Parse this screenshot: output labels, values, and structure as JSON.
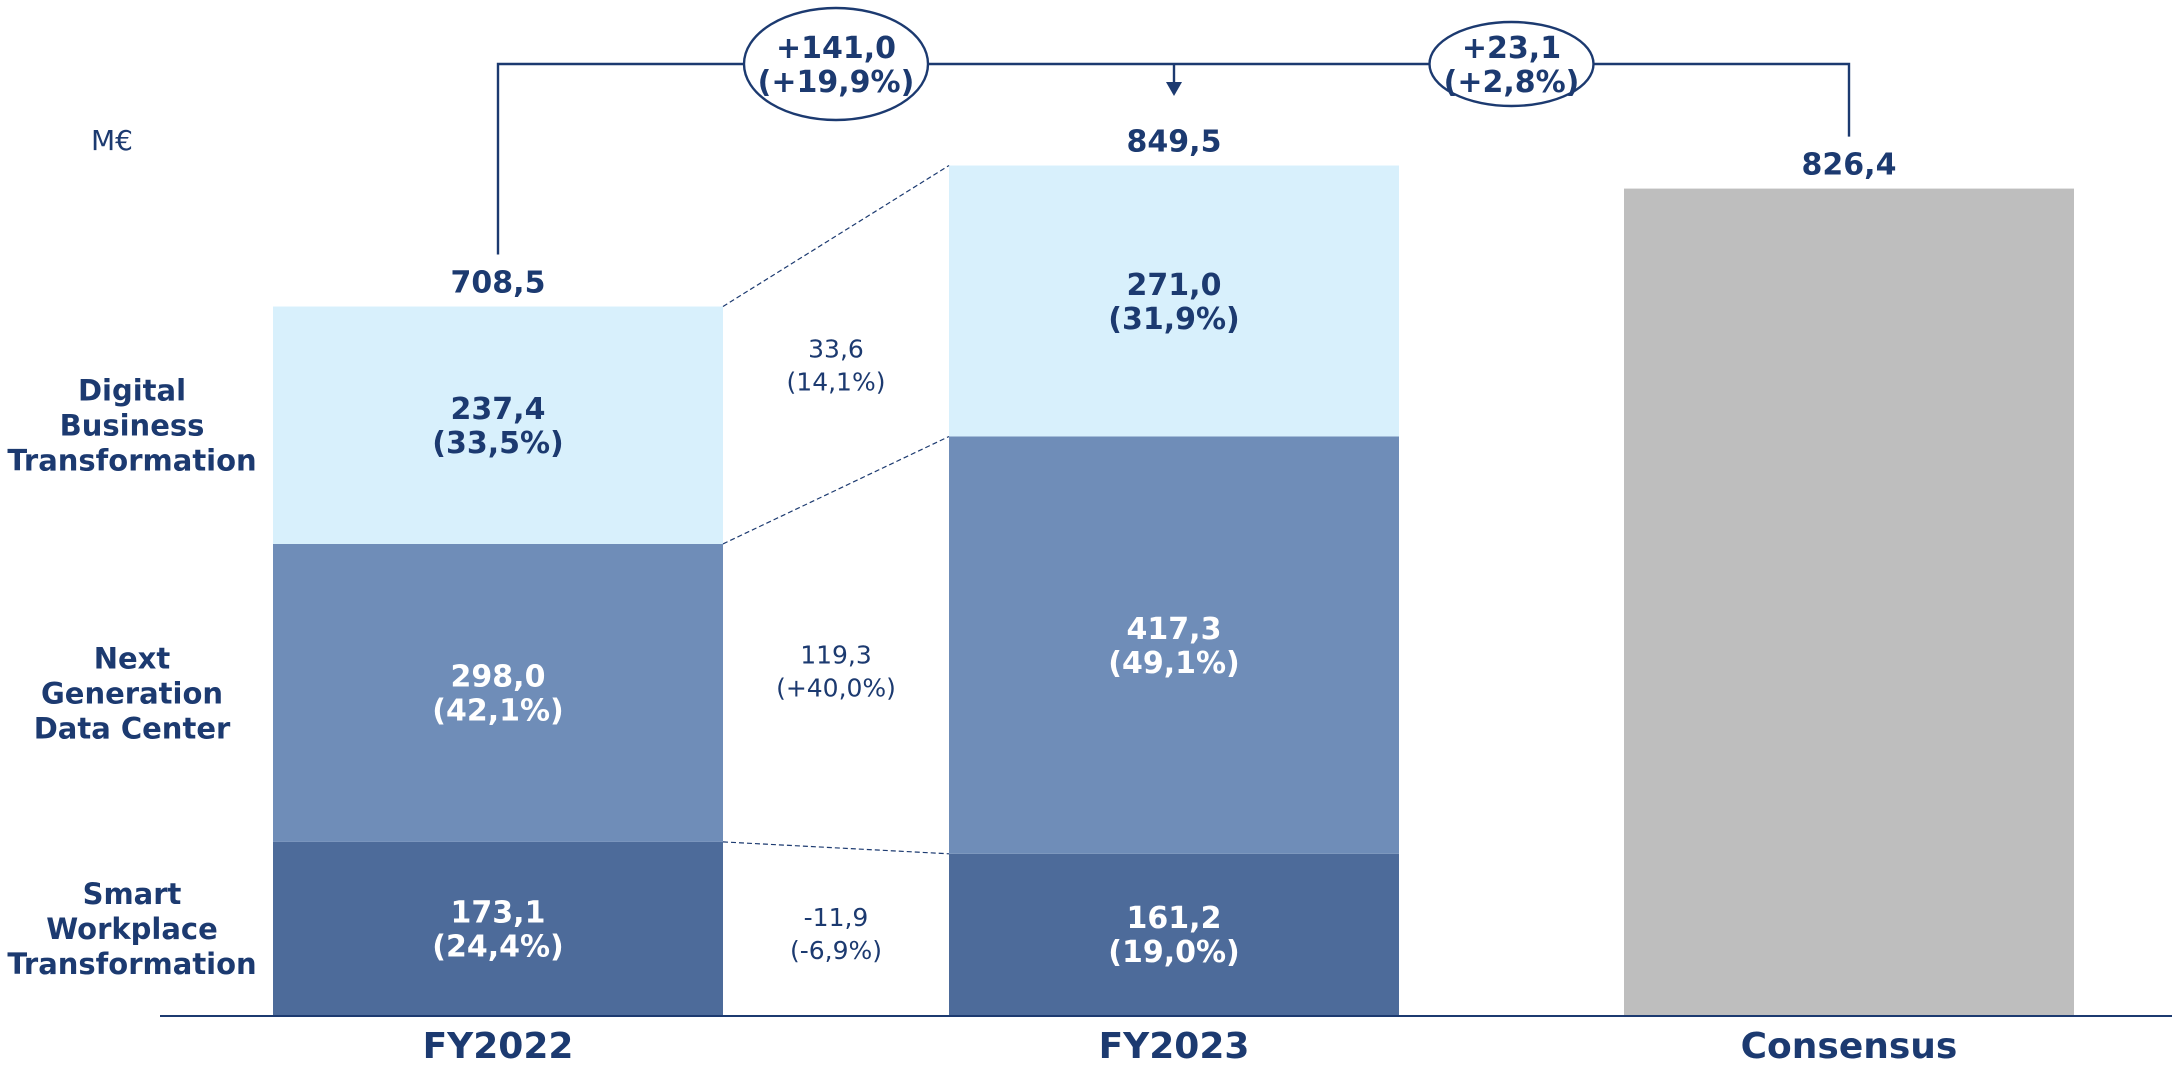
{
  "chart_data": {
    "type": "bar",
    "stacked": true,
    "unit": "M€",
    "categories": [
      "FY2022",
      "FY2023",
      "Consensus"
    ],
    "series": [
      {
        "name": "Smart Workplace Transformation",
        "color": "#4d6b9a",
        "values": [
          173.1,
          161.2,
          null
        ],
        "labels": [
          [
            "173,1",
            "(24,4%)"
          ],
          [
            "161,2",
            "(19,0%)"
          ],
          null
        ]
      },
      {
        "name": "Next Generation Data Center",
        "color": "#6f8db8",
        "values": [
          298.0,
          417.3,
          null
        ],
        "labels": [
          [
            "298,0",
            "(42,1%)"
          ],
          [
            "417,3",
            "(49,1%)"
          ],
          null
        ]
      },
      {
        "name": "Digital Business Transformation",
        "color": "#d8f0fc",
        "values": [
          237.4,
          271.0,
          null
        ],
        "labels": [
          [
            "237,4",
            "(33,5%)"
          ],
          [
            "271,0",
            "(31,9%)"
          ],
          null
        ]
      },
      {
        "name": "Consensus",
        "color": "#bebebe",
        "values": [
          null,
          null,
          826.4
        ],
        "labels": [
          null,
          null,
          null
        ]
      }
    ],
    "totals": [
      {
        "value": 708.5,
        "label": "708,5"
      },
      {
        "value": 849.5,
        "label": "849,5"
      },
      {
        "value": 826.4,
        "label": "826,4"
      }
    ],
    "legend_labels": [
      [
        "Smart",
        "Workplace",
        "Transformation"
      ],
      [
        "Next",
        "Generation",
        "Data Center"
      ],
      [
        "Digital",
        "Business",
        "Transformation"
      ]
    ],
    "segment_deltas": [
      {
        "series": "Digital Business Transformation",
        "value": 33.6,
        "lines": [
          "33,6",
          "(14,1%)"
        ]
      },
      {
        "series": "Next Generation Data Center",
        "value": 119.3,
        "lines": [
          "119,3",
          "(+40,0%)"
        ]
      },
      {
        "series": "Smart Workplace Transformation",
        "value": -11.9,
        "lines": [
          "-11,9",
          "(-6,9%)"
        ]
      }
    ],
    "growth_callouts": [
      {
        "from": "FY2022",
        "to": "FY2023",
        "lines": [
          "+141,0",
          "(+19,9%)"
        ]
      },
      {
        "from": "Consensus",
        "to": "FY2023",
        "lines": [
          "+23,1",
          "(+2,8%)"
        ]
      }
    ],
    "ylim": [
      0,
      1020
    ],
    "grid": false,
    "colors": {
      "text": "#1c3a70",
      "axis": "#1c3a70",
      "connector": "#1c3a70"
    }
  }
}
